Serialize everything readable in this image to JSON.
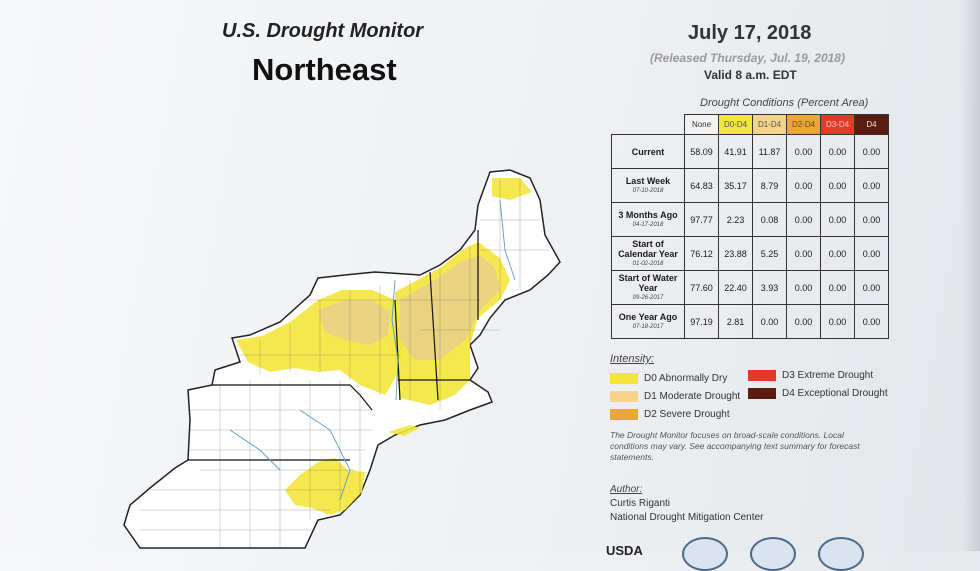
{
  "header": {
    "title_small": "U.S. Drought Monitor",
    "title_big": "Northeast",
    "date": "July 17, 2018",
    "released": "(Released Thursday, Jul. 19, 2018)",
    "valid": "Valid 8 a.m. EDT"
  },
  "table": {
    "title": "Drought Conditions (Percent Area)",
    "columns": [
      "None",
      "D0-D4",
      "D1-D4",
      "D2-D4",
      "D3-D4",
      "D4"
    ],
    "rows": [
      {
        "label": "Current",
        "date": "",
        "values": [
          "58.09",
          "41.91",
          "11.87",
          "0.00",
          "0.00",
          "0.00"
        ]
      },
      {
        "label": "Last Week",
        "date": "07-10-2018",
        "values": [
          "64.83",
          "35.17",
          "8.79",
          "0.00",
          "0.00",
          "0.00"
        ]
      },
      {
        "label": "3 Months Ago",
        "date": "04-17-2018",
        "values": [
          "97.77",
          "2.23",
          "0.08",
          "0.00",
          "0.00",
          "0.00"
        ]
      },
      {
        "label": "Start of Calendar Year",
        "date": "01-02-2018",
        "values": [
          "76.12",
          "23.88",
          "5.25",
          "0.00",
          "0.00",
          "0.00"
        ]
      },
      {
        "label": "Start of Water Year",
        "date": "09-26-2017",
        "values": [
          "77.60",
          "22.40",
          "3.93",
          "0.00",
          "0.00",
          "0.00"
        ]
      },
      {
        "label": "One Year Ago",
        "date": "07-18-2017",
        "values": [
          "97.19",
          "2.81",
          "0.00",
          "0.00",
          "0.00",
          "0.00"
        ]
      }
    ]
  },
  "legend": {
    "title": "Intensity:",
    "items": [
      {
        "label": "D0 Abnormally Dry",
        "color": "#f3e63b"
      },
      {
        "label": "D1 Moderate Drought",
        "color": "#f4d48a"
      },
      {
        "label": "D2 Severe Drought",
        "color": "#e9a73a"
      },
      {
        "label": "D3 Extreme Drought",
        "color": "#e43a2a"
      },
      {
        "label": "D4 Exceptional Drought",
        "color": "#5a1c10"
      }
    ]
  },
  "note": "The Drought Monitor focuses on broad-scale conditions. Local conditions may vary. See accompanying text summary for forecast statements.",
  "author": {
    "heading": "Author:",
    "name": "Curtis Riganti",
    "org": "National Drought Mitigation Center"
  },
  "footer": {
    "usda": "USDA"
  }
}
